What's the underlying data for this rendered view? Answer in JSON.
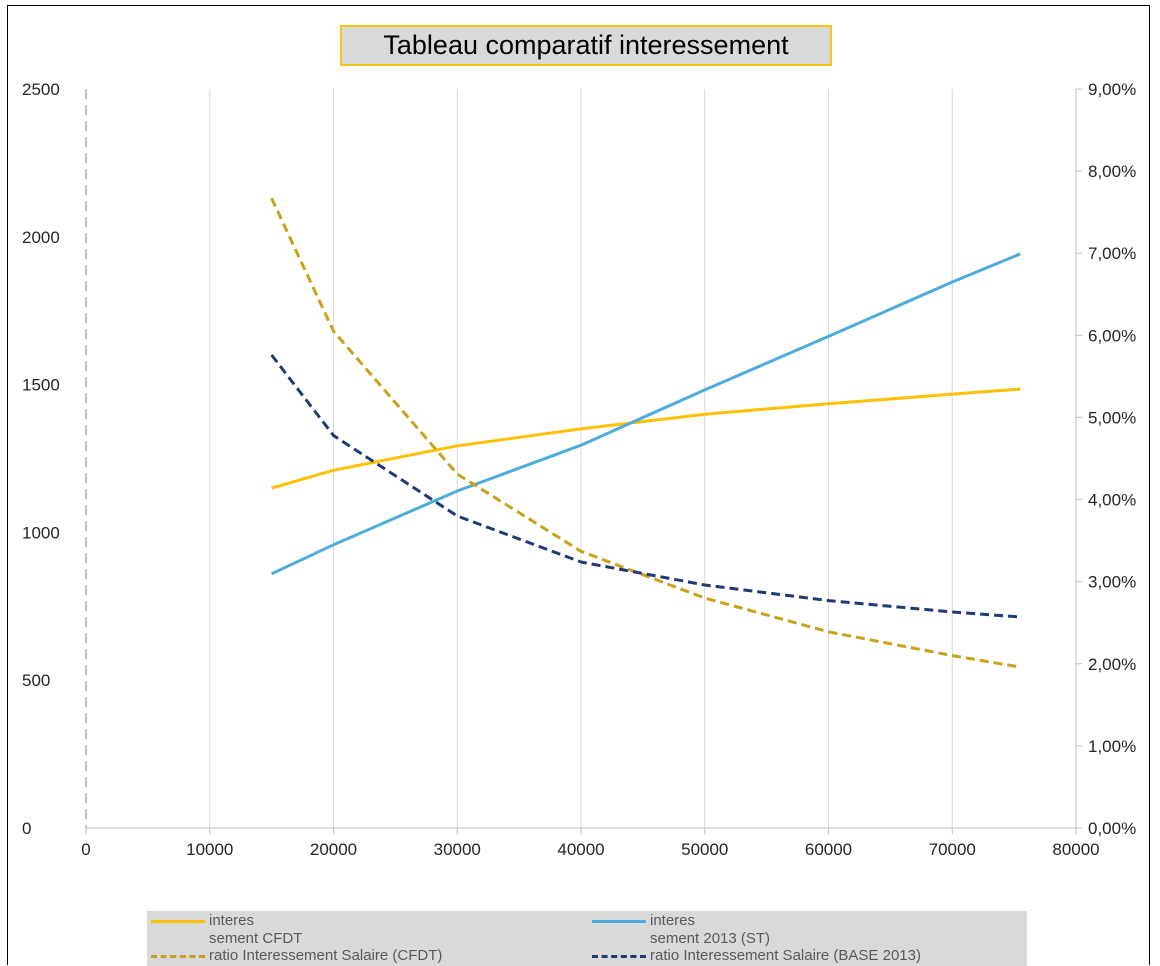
{
  "chart_data": {
    "type": "line",
    "title": "Tableau comparatif interessement",
    "x_ticks": [
      "0",
      "10000",
      "20000",
      "30000",
      "40000",
      "50000",
      "60000",
      "70000",
      "80000"
    ],
    "xlim": [
      0,
      80000
    ],
    "y_ticks": [
      "0",
      "500",
      "1000",
      "1500",
      "2000",
      "2500"
    ],
    "ylim": [
      0,
      2500
    ],
    "y2_ticks": [
      "0,00%",
      "1,00%",
      "2,00%",
      "3,00%",
      "4,00%",
      "5,00%",
      "6,00%",
      "7,00%",
      "8,00%",
      "9,00%"
    ],
    "y2lim": [
      0,
      9
    ],
    "grid": "vertical",
    "legend_position": "bottom",
    "series": [
      {
        "name_line1": "interes",
        "name_line2": "sement CFDT",
        "axis": "left",
        "color": "#FFC000",
        "dash": "solid",
        "x": [
          15000,
          20000,
          30000,
          40000,
          50000,
          60000,
          70000,
          75500
        ],
        "y": [
          1150,
          1210,
          1293,
          1350,
          1400,
          1435,
          1468,
          1485
        ]
      },
      {
        "name_line1": "interes",
        "name_line2": "sement 2013 (ST)",
        "axis": "left",
        "color": "#4EACDD",
        "dash": "solid",
        "x": [
          15000,
          20000,
          30000,
          40000,
          50000,
          60000,
          70000,
          75500
        ],
        "y": [
          860,
          958,
          1140,
          1295,
          1482,
          1663,
          1847,
          1942
        ]
      },
      {
        "name": "ratio Interessement Salaire (CFDT)",
        "axis": "right",
        "color": "#C9A21B",
        "dash": "dashed",
        "x": [
          15000,
          20000,
          30000,
          40000,
          50000,
          60000,
          70000,
          75500
        ],
        "y": [
          7.67,
          6.05,
          4.31,
          3.37,
          2.8,
          2.39,
          2.1,
          1.96
        ]
      },
      {
        "name": "ratio Interessement Salaire (BASE 2013)",
        "axis": "right",
        "color": "#1F3A75",
        "dash": "dashed",
        "x": [
          15000,
          20000,
          30000,
          40000,
          50000,
          60000,
          70000,
          75500
        ],
        "y": [
          5.76,
          4.78,
          3.8,
          3.24,
          2.96,
          2.77,
          2.63,
          2.57
        ]
      }
    ]
  }
}
